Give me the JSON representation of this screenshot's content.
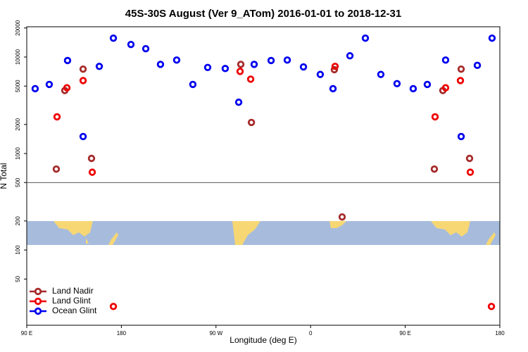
{
  "chart_data": {
    "type": "scatter",
    "title": "45S-30S August (Ver 9_ATom)   2016-01-01 to 2018-12-31",
    "x_label": "Longitude (deg E)",
    "y_label": "N Total",
    "xlim": [
      90,
      540
    ],
    "xticks": [
      {
        "value": 90,
        "label": "90 E"
      },
      180,
      {
        "value": 270,
        "label": "90 W"
      },
      {
        "value": 360,
        "label": "0"
      },
      {
        "value": 450,
        "label": "90 E"
      },
      {
        "value": 540,
        "label": "180"
      }
    ],
    "ylim": [
      16.6,
      20600
    ],
    "log_y": true,
    "yticks": [
      50,
      100,
      200,
      500,
      1000,
      2000,
      5000,
      10000,
      20000
    ],
    "hline": 500,
    "legend": "bottom-left",
    "series": [
      {
        "name": "Land Nadir",
        "color": "#a52a2a",
        "x": [
          118.1,
          126.2,
          143.6,
          151.6,
          293.6,
          303.7,
          382.6,
          390.0,
          477.7,
          485.8,
          503.2,
          511.2
        ],
        "values": [
          690,
          4500,
          7500,
          890,
          8400,
          2100,
          7400,
          220,
          690,
          4500,
          7500,
          890
        ]
      },
      {
        "name": "Land Glint",
        "color": "#ee0000",
        "x": [
          118.8,
          128.2,
          143.6,
          152.3,
          172.4,
          292.9,
          303.0,
          383.3,
          478.4,
          488.4,
          502.5,
          511.9,
          532.0
        ],
        "values": [
          2400,
          4800,
          5700,
          640,
          26,
          7100,
          5900,
          8000,
          2400,
          4800,
          5700,
          640,
          26
        ]
      },
      {
        "name": "Ocean Glint",
        "color": "#0000ee",
        "x": [
          98.0,
          111.4,
          128.8,
          143.6,
          159.0,
          172.4,
          189.1,
          203.2,
          217.2,
          232.6,
          248.0,
          262.1,
          278.8,
          291.6,
          306.3,
          322.4,
          337.8,
          353.2,
          369.2,
          381.3,
          397.4,
          412.1,
          426.8,
          442.2,
          457.6,
          471.0,
          488.4,
          503.2,
          518.6,
          532.6
        ],
        "values": [
          4700,
          5200,
          9200,
          1500,
          8000,
          15700,
          13500,
          12200,
          8400,
          9300,
          5200,
          7800,
          7600,
          3400,
          8400,
          9200,
          9300,
          7900,
          6600,
          4700,
          10300,
          15700,
          6600,
          5300,
          4700,
          5200,
          9300,
          1500,
          8200,
          15700
        ]
      }
    ]
  }
}
